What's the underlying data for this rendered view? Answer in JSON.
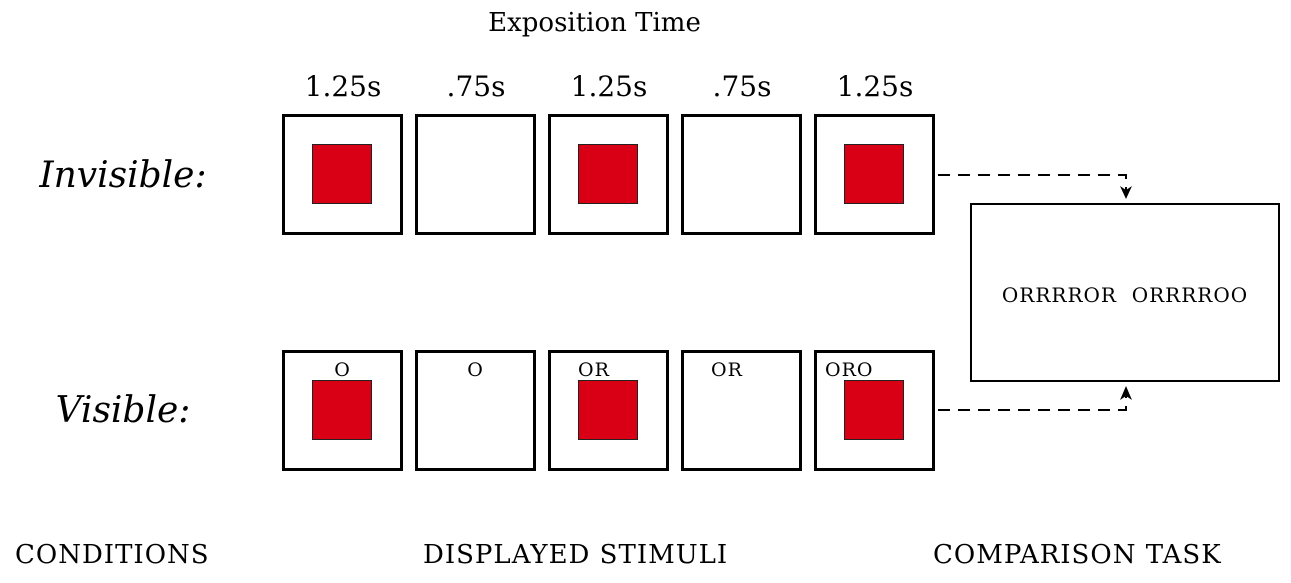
{
  "title": "Exposition Time",
  "times": [
    "1.25s",
    ".75s",
    "1.25s",
    ".75s",
    "1.25s"
  ],
  "conditions": {
    "invisible": {
      "label": "Invisible:",
      "red_square": [
        true,
        false,
        true,
        false,
        true
      ]
    },
    "visible": {
      "label": "Visible:",
      "red_square": [
        true,
        false,
        true,
        false,
        true
      ],
      "sequences": [
        "O",
        "O",
        "OR",
        "OR",
        "ORO"
      ]
    }
  },
  "comparison_task": {
    "options": [
      "ORRRROR",
      "ORRRROO"
    ]
  },
  "footer": {
    "conditions": "CONDITIONS",
    "stimuli": "DISPLAYED STIMULI",
    "task": "COMPARISON TASK"
  },
  "colors": {
    "stimulus_red": "#d90015",
    "frame": "#000000"
  }
}
